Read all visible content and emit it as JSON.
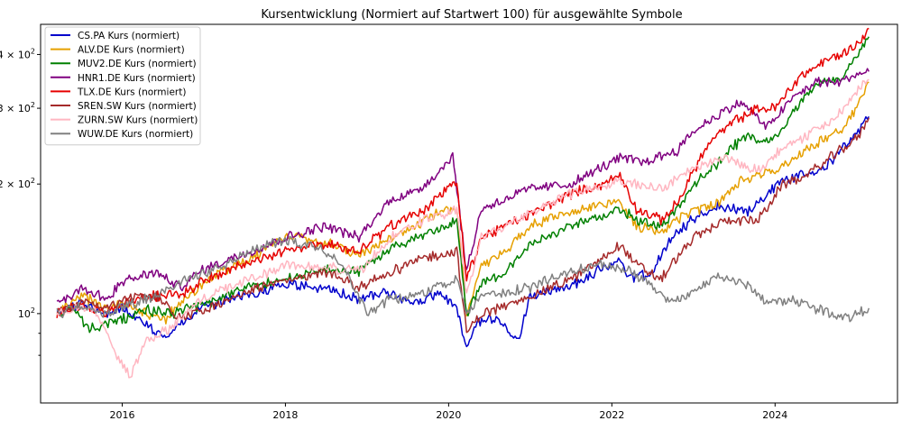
{
  "chart_data": {
    "type": "line",
    "title": "Kursentwicklung (Normiert auf Startwert 100) für ausgewählte Symbole",
    "xlabel": "",
    "ylabel": "",
    "y_scale": "log",
    "xlim": [
      2015.0,
      2025.5
    ],
    "ylim": [
      62,
      470
    ],
    "grid": false,
    "legend_position": "upper-left",
    "x_ticks": [
      2016,
      2018,
      2020,
      2022,
      2024
    ],
    "x_tick_labels": [
      "2016",
      "2018",
      "2020",
      "2022",
      "2024"
    ],
    "y_ticks": [
      100,
      200,
      300,
      400
    ],
    "y_tick_labels": [
      "10^2",
      "2×10^2",
      "3×10^2",
      "4×10^2"
    ],
    "y_minor_ticks": [
      80,
      90
    ],
    "series": [
      {
        "name": "CS.PA Kurs (normiert)",
        "color": "#0000cc",
        "points": [
          [
            2015.2,
            100
          ],
          [
            2015.5,
            106
          ],
          [
            2015.8,
            100
          ],
          [
            2016.0,
            103
          ],
          [
            2016.3,
            95
          ],
          [
            2016.5,
            88
          ],
          [
            2016.8,
            97
          ],
          [
            2017.0,
            104
          ],
          [
            2017.5,
            110
          ],
          [
            2018.0,
            117
          ],
          [
            2018.5,
            114
          ],
          [
            2018.9,
            108
          ],
          [
            2019.2,
            112
          ],
          [
            2019.6,
            106
          ],
          [
            2019.9,
            112
          ],
          [
            2020.1,
            103
          ],
          [
            2020.22,
            82
          ],
          [
            2020.35,
            95
          ],
          [
            2020.6,
            97
          ],
          [
            2020.85,
            86
          ],
          [
            2021.0,
            110
          ],
          [
            2021.5,
            116
          ],
          [
            2021.9,
            128
          ],
          [
            2022.1,
            133
          ],
          [
            2022.2,
            120
          ],
          [
            2022.5,
            125
          ],
          [
            2022.7,
            147
          ],
          [
            2023.0,
            166
          ],
          [
            2023.3,
            178
          ],
          [
            2023.7,
            173
          ],
          [
            2024.0,
            198
          ],
          [
            2024.3,
            212
          ],
          [
            2024.6,
            218
          ],
          [
            2024.8,
            238
          ],
          [
            2025.0,
            262
          ],
          [
            2025.15,
            287
          ]
        ]
      },
      {
        "name": "ALV.DE Kurs (normiert)",
        "color": "#e6a000",
        "points": [
          [
            2015.2,
            100
          ],
          [
            2015.5,
            110
          ],
          [
            2015.8,
            103
          ],
          [
            2016.0,
            106
          ],
          [
            2016.3,
            100
          ],
          [
            2016.5,
            96
          ],
          [
            2016.8,
            110
          ],
          [
            2017.2,
            125
          ],
          [
            2017.6,
            135
          ],
          [
            2018.0,
            152
          ],
          [
            2018.5,
            146
          ],
          [
            2018.9,
            137
          ],
          [
            2019.3,
            150
          ],
          [
            2019.6,
            160
          ],
          [
            2019.9,
            173
          ],
          [
            2020.1,
            176
          ],
          [
            2020.22,
            100
          ],
          [
            2020.4,
            128
          ],
          [
            2020.7,
            140
          ],
          [
            2021.0,
            160
          ],
          [
            2021.5,
            173
          ],
          [
            2021.9,
            180
          ],
          [
            2022.1,
            183
          ],
          [
            2022.3,
            160
          ],
          [
            2022.6,
            155
          ],
          [
            2022.9,
            170
          ],
          [
            2023.3,
            180
          ],
          [
            2023.6,
            205
          ],
          [
            2024.0,
            215
          ],
          [
            2024.3,
            235
          ],
          [
            2024.6,
            255
          ],
          [
            2024.8,
            268
          ],
          [
            2025.0,
            300
          ],
          [
            2025.15,
            345
          ]
        ]
      },
      {
        "name": "MUV2.DE Kurs (normiert)",
        "color": "#008000",
        "points": [
          [
            2015.2,
            100
          ],
          [
            2015.4,
            102
          ],
          [
            2015.6,
            92
          ],
          [
            2016.0,
            97
          ],
          [
            2016.3,
            102
          ],
          [
            2016.6,
            100
          ],
          [
            2017.0,
            105
          ],
          [
            2017.5,
            115
          ],
          [
            2018.0,
            120
          ],
          [
            2018.5,
            127
          ],
          [
            2018.9,
            125
          ],
          [
            2019.3,
            143
          ],
          [
            2019.7,
            152
          ],
          [
            2020.0,
            160
          ],
          [
            2020.1,
            165
          ],
          [
            2020.22,
            100
          ],
          [
            2020.4,
            118
          ],
          [
            2020.7,
            125
          ],
          [
            2021.0,
            145
          ],
          [
            2021.5,
            160
          ],
          [
            2021.9,
            168
          ],
          [
            2022.1,
            176
          ],
          [
            2022.3,
            165
          ],
          [
            2022.6,
            160
          ],
          [
            2022.8,
            175
          ],
          [
            2023.0,
            198
          ],
          [
            2023.3,
            225
          ],
          [
            2023.6,
            255
          ],
          [
            2024.0,
            255
          ],
          [
            2024.2,
            290
          ],
          [
            2024.5,
            340
          ],
          [
            2024.8,
            355
          ],
          [
            2025.0,
            395
          ],
          [
            2025.15,
            440
          ]
        ]
      },
      {
        "name": "HNR1.DE Kurs (normiert)",
        "color": "#800080",
        "points": [
          [
            2015.2,
            105
          ],
          [
            2015.5,
            115
          ],
          [
            2015.8,
            108
          ],
          [
            2016.0,
            118
          ],
          [
            2016.4,
            125
          ],
          [
            2016.7,
            115
          ],
          [
            2017.0,
            127
          ],
          [
            2017.5,
            138
          ],
          [
            2018.0,
            150
          ],
          [
            2018.5,
            160
          ],
          [
            2018.9,
            150
          ],
          [
            2019.3,
            185
          ],
          [
            2019.6,
            192
          ],
          [
            2019.9,
            215
          ],
          [
            2020.05,
            235
          ],
          [
            2020.22,
            125
          ],
          [
            2020.4,
            175
          ],
          [
            2020.7,
            185
          ],
          [
            2021.0,
            195
          ],
          [
            2021.5,
            200
          ],
          [
            2021.9,
            220
          ],
          [
            2022.1,
            230
          ],
          [
            2022.4,
            225
          ],
          [
            2022.8,
            240
          ],
          [
            2023.0,
            265
          ],
          [
            2023.3,
            290
          ],
          [
            2023.6,
            310
          ],
          [
            2023.9,
            270
          ],
          [
            2024.2,
            315
          ],
          [
            2024.5,
            345
          ],
          [
            2024.8,
            345
          ],
          [
            2025.0,
            360
          ],
          [
            2025.15,
            365
          ]
        ]
      },
      {
        "name": "TLX.DE Kurs (normiert)",
        "color": "#e60000",
        "points": [
          [
            2015.2,
            100
          ],
          [
            2015.5,
            105
          ],
          [
            2015.8,
            100
          ],
          [
            2016.0,
            105
          ],
          [
            2016.4,
            110
          ],
          [
            2016.8,
            112
          ],
          [
            2017.0,
            120
          ],
          [
            2017.5,
            130
          ],
          [
            2018.0,
            140
          ],
          [
            2018.5,
            145
          ],
          [
            2018.9,
            140
          ],
          [
            2019.3,
            160
          ],
          [
            2019.7,
            175
          ],
          [
            2020.0,
            195
          ],
          [
            2020.1,
            200
          ],
          [
            2020.22,
            120
          ],
          [
            2020.4,
            150
          ],
          [
            2020.7,
            160
          ],
          [
            2021.0,
            170
          ],
          [
            2021.5,
            190
          ],
          [
            2021.9,
            200
          ],
          [
            2022.1,
            210
          ],
          [
            2022.3,
            175
          ],
          [
            2022.6,
            165
          ],
          [
            2022.8,
            180
          ],
          [
            2023.0,
            215
          ],
          [
            2023.2,
            250
          ],
          [
            2023.5,
            280
          ],
          [
            2023.8,
            300
          ],
          [
            2024.0,
            300
          ],
          [
            2024.3,
            355
          ],
          [
            2024.6,
            385
          ],
          [
            2024.8,
            400
          ],
          [
            2025.0,
            420
          ],
          [
            2025.15,
            460
          ]
        ]
      },
      {
        "name": "SREN.SW Kurs (normiert)",
        "color": "#a52a2a",
        "points": [
          [
            2015.2,
            100
          ],
          [
            2015.5,
            106
          ],
          [
            2015.8,
            103
          ],
          [
            2016.0,
            108
          ],
          [
            2016.4,
            110
          ],
          [
            2016.7,
            98
          ],
          [
            2017.0,
            102
          ],
          [
            2017.5,
            112
          ],
          [
            2018.0,
            120
          ],
          [
            2018.5,
            125
          ],
          [
            2018.9,
            115
          ],
          [
            2019.3,
            125
          ],
          [
            2019.7,
            135
          ],
          [
            2020.0,
            138
          ],
          [
            2020.1,
            140
          ],
          [
            2020.22,
            90
          ],
          [
            2020.4,
            100
          ],
          [
            2020.7,
            104
          ],
          [
            2021.0,
            110
          ],
          [
            2021.5,
            120
          ],
          [
            2021.9,
            135
          ],
          [
            2022.1,
            145
          ],
          [
            2022.3,
            130
          ],
          [
            2022.6,
            120
          ],
          [
            2022.8,
            135
          ],
          [
            2023.0,
            150
          ],
          [
            2023.4,
            165
          ],
          [
            2023.8,
            165
          ],
          [
            2024.1,
            200
          ],
          [
            2024.4,
            210
          ],
          [
            2024.7,
            232
          ],
          [
            2025.0,
            255
          ],
          [
            2025.15,
            285
          ]
        ]
      },
      {
        "name": "ZURN.SW Kurs (normiert)",
        "color": "#ffb6c1",
        "points": [
          [
            2015.2,
            100
          ],
          [
            2015.5,
            104
          ],
          [
            2015.7,
            100
          ],
          [
            2015.9,
            82
          ],
          [
            2016.1,
            72
          ],
          [
            2016.3,
            86
          ],
          [
            2016.6,
            93
          ],
          [
            2016.9,
            105
          ],
          [
            2017.2,
            113
          ],
          [
            2017.6,
            120
          ],
          [
            2018.0,
            130
          ],
          [
            2018.5,
            128
          ],
          [
            2018.9,
            125
          ],
          [
            2019.3,
            150
          ],
          [
            2019.7,
            165
          ],
          [
            2020.0,
            172
          ],
          [
            2020.1,
            175
          ],
          [
            2020.22,
            110
          ],
          [
            2020.4,
            150
          ],
          [
            2020.7,
            160
          ],
          [
            2021.0,
            172
          ],
          [
            2021.5,
            190
          ],
          [
            2021.9,
            200
          ],
          [
            2022.1,
            205
          ],
          [
            2022.3,
            200
          ],
          [
            2022.6,
            195
          ],
          [
            2022.8,
            205
          ],
          [
            2023.0,
            220
          ],
          [
            2023.4,
            230
          ],
          [
            2023.8,
            215
          ],
          [
            2024.1,
            245
          ],
          [
            2024.4,
            260
          ],
          [
            2024.7,
            280
          ],
          [
            2025.0,
            330
          ],
          [
            2025.15,
            350
          ]
        ]
      },
      {
        "name": "WUW.DE Kurs (normiert)",
        "color": "#808080",
        "points": [
          [
            2015.2,
            100
          ],
          [
            2015.5,
            104
          ],
          [
            2015.8,
            100
          ],
          [
            2016.0,
            104
          ],
          [
            2016.4,
            110
          ],
          [
            2016.8,
            120
          ],
          [
            2017.2,
            128
          ],
          [
            2017.6,
            140
          ],
          [
            2018.0,
            148
          ],
          [
            2018.4,
            143
          ],
          [
            2018.7,
            130
          ],
          [
            2019.0,
            100
          ],
          [
            2019.3,
            108
          ],
          [
            2019.7,
            112
          ],
          [
            2020.0,
            118
          ],
          [
            2020.1,
            120
          ],
          [
            2020.22,
            100
          ],
          [
            2020.4,
            110
          ],
          [
            2020.7,
            112
          ],
          [
            2021.0,
            115
          ],
          [
            2021.5,
            125
          ],
          [
            2021.9,
            130
          ],
          [
            2022.1,
            128
          ],
          [
            2022.4,
            120
          ],
          [
            2022.7,
            106
          ],
          [
            2023.0,
            112
          ],
          [
            2023.3,
            123
          ],
          [
            2023.5,
            119
          ],
          [
            2023.7,
            115
          ],
          [
            2023.9,
            106
          ],
          [
            2024.2,
            108
          ],
          [
            2024.5,
            103
          ],
          [
            2024.7,
            100
          ],
          [
            2024.9,
            98
          ],
          [
            2025.0,
            100
          ],
          [
            2025.15,
            103
          ]
        ]
      }
    ]
  }
}
